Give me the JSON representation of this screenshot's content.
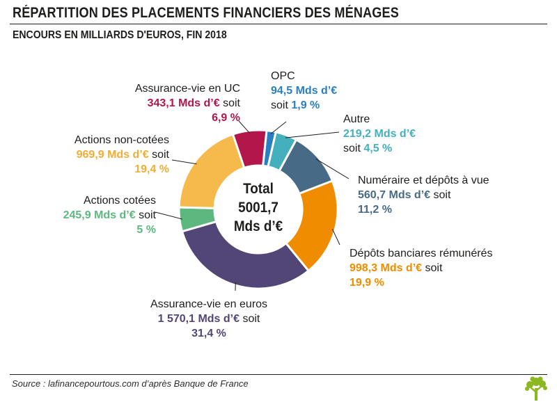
{
  "header": {
    "title": "RÉPARTITION DES PLACEMENTS FINANCIERS DES MÉNAGES",
    "subtitle": "ENCOURS EN MILLIARDS D'EUROS, FIN 2018"
  },
  "center": {
    "line1": "Total",
    "line2": "5001,7",
    "line3": "Mds d’€"
  },
  "footer": {
    "source": "Source : lafinancepourtous.com d’après Banque de France"
  },
  "chart_data": {
    "type": "pie",
    "donut": true,
    "total": 5001.7,
    "unit": "Mds d’€",
    "slices": [
      {
        "name": "OPC",
        "value": 94.5,
        "percent": 1.9,
        "color": "#2a7fc1",
        "value_text": "94,5 Mds d’€",
        "pct_text": "1,9 %",
        "soit": "soit"
      },
      {
        "name": "Autre",
        "value": 219.2,
        "percent": 4.5,
        "color": "#44b0bd",
        "value_text": "219,2 Mds d’€",
        "pct_text": "4,5 %",
        "soit": "soit"
      },
      {
        "name": "Numéraire et dépôts à vue",
        "value": 560.7,
        "percent": 11.2,
        "color": "#476a87",
        "value_text": "560,7 Mds d’€",
        "pct_text": "11,2 %",
        "soit": "soit"
      },
      {
        "name": "Dépôts banciares rémunérés",
        "value": 998.3,
        "percent": 19.9,
        "color": "#ef8c00",
        "value_text": "998,3 Mds d’€",
        "pct_text": "19,9 %",
        "soit": "soit"
      },
      {
        "name": "Assurance-vie en euros",
        "value": 1570.1,
        "percent": 31.4,
        "color": "#524677",
        "value_text": "1 570,1 Mds d’€",
        "pct_text": "31,4 %",
        "soit": "soit"
      },
      {
        "name": "Actions cotées",
        "value": 245.9,
        "percent": 5,
        "color": "#5db880",
        "value_text": "245,9 Mds d’€",
        "pct_text": "5 %",
        "soit": "soit"
      },
      {
        "name": "Actions non-cotées",
        "value": 969.9,
        "percent": 19.4,
        "color": "#f6b94c",
        "value_text": "969,9 Mds d’€",
        "pct_text": "19,4 %",
        "soit": "soit"
      },
      {
        "name": "Assurance-vie en UC",
        "value": 343.1,
        "percent": 6.9,
        "color": "#b2164a",
        "value_text": "343,1 Mds d’€",
        "pct_text": "6,9 %",
        "soit": "soit"
      }
    ]
  }
}
